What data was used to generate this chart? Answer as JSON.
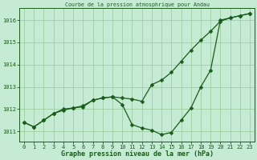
{
  "title_top": "Courbe de la pression atmosphrique pour Andau",
  "xlabel": "Graphe pression niveau de la mer (hPa)",
  "bg_color": "#c5ebd5",
  "line_color": "#1a5c1a",
  "grid_color": "#96c896",
  "hours": [
    0,
    1,
    2,
    3,
    4,
    5,
    6,
    7,
    8,
    9,
    10,
    11,
    12,
    13,
    14,
    15,
    16,
    17,
    18,
    19,
    20,
    21,
    22,
    23
  ],
  "line1": [
    1011.4,
    1011.2,
    1011.5,
    1011.8,
    1011.95,
    1012.05,
    1012.15,
    1012.4,
    1012.5,
    1012.55,
    1012.5,
    1012.45,
    1012.35,
    1013.1,
    1013.3,
    1013.65,
    1014.15,
    1014.65,
    1015.1,
    1015.5,
    1015.95,
    1016.1,
    1016.2,
    1016.3
  ],
  "line2": [
    1011.4,
    1011.2,
    1011.5,
    1011.8,
    1012.0,
    1012.05,
    1012.1,
    1012.4,
    1012.5,
    1012.55,
    1012.2,
    1011.3,
    1011.15,
    1011.05,
    1010.85,
    1010.95,
    1011.5,
    1012.05,
    1013.0,
    1013.75,
    1016.0,
    1016.1,
    1016.2,
    1016.3
  ],
  "ylim_min": 1010.55,
  "ylim_max": 1016.55,
  "yticks": [
    1011,
    1012,
    1013,
    1014,
    1015,
    1016
  ],
  "xticks": [
    0,
    1,
    2,
    3,
    4,
    5,
    6,
    7,
    8,
    9,
    10,
    11,
    12,
    13,
    14,
    15,
    16,
    17,
    18,
    19,
    20,
    21,
    22,
    23
  ],
  "markersize": 2.5,
  "linewidth": 0.9,
  "tick_fontsize": 5.0,
  "xlabel_fontsize": 6.0,
  "title_fontsize": 4.8
}
